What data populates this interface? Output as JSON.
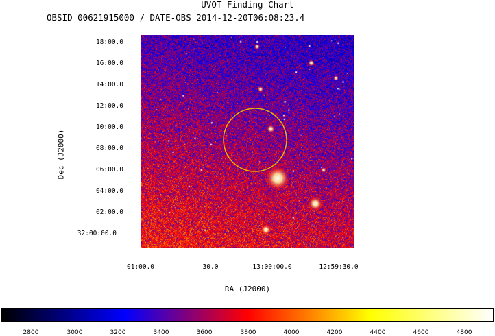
{
  "title": "UVOT Finding Chart",
  "subtitle": "OBSID 00621915000 / DATE-OBS 2014-12-20T06:08:23.4",
  "image": {
    "xlabel": "RA (J2000)",
    "ylabel": "Dec (J2000)",
    "dec_ticks": [
      "18:00.0",
      "16:00.0",
      "14:00.0",
      "12:00.0",
      "10:00.0",
      "08:00.0",
      "06:00.0",
      "04:00.0",
      "02:00.0",
      "32:00:00.0"
    ],
    "ra_ticks": [
      "01:00.0",
      "30.0",
      "13:00:00.0",
      "12:59:30.0"
    ],
    "circle_color": "#e6b800"
  },
  "colorbar": {
    "ticks": [
      "2800",
      "3000",
      "3200",
      "3400",
      "3600",
      "3800",
      "4000",
      "4200",
      "4400",
      "4600",
      "4800"
    ],
    "colors": [
      "#000000",
      "#0000ff",
      "#ff0000",
      "#ffff00",
      "#ffffff"
    ]
  }
}
